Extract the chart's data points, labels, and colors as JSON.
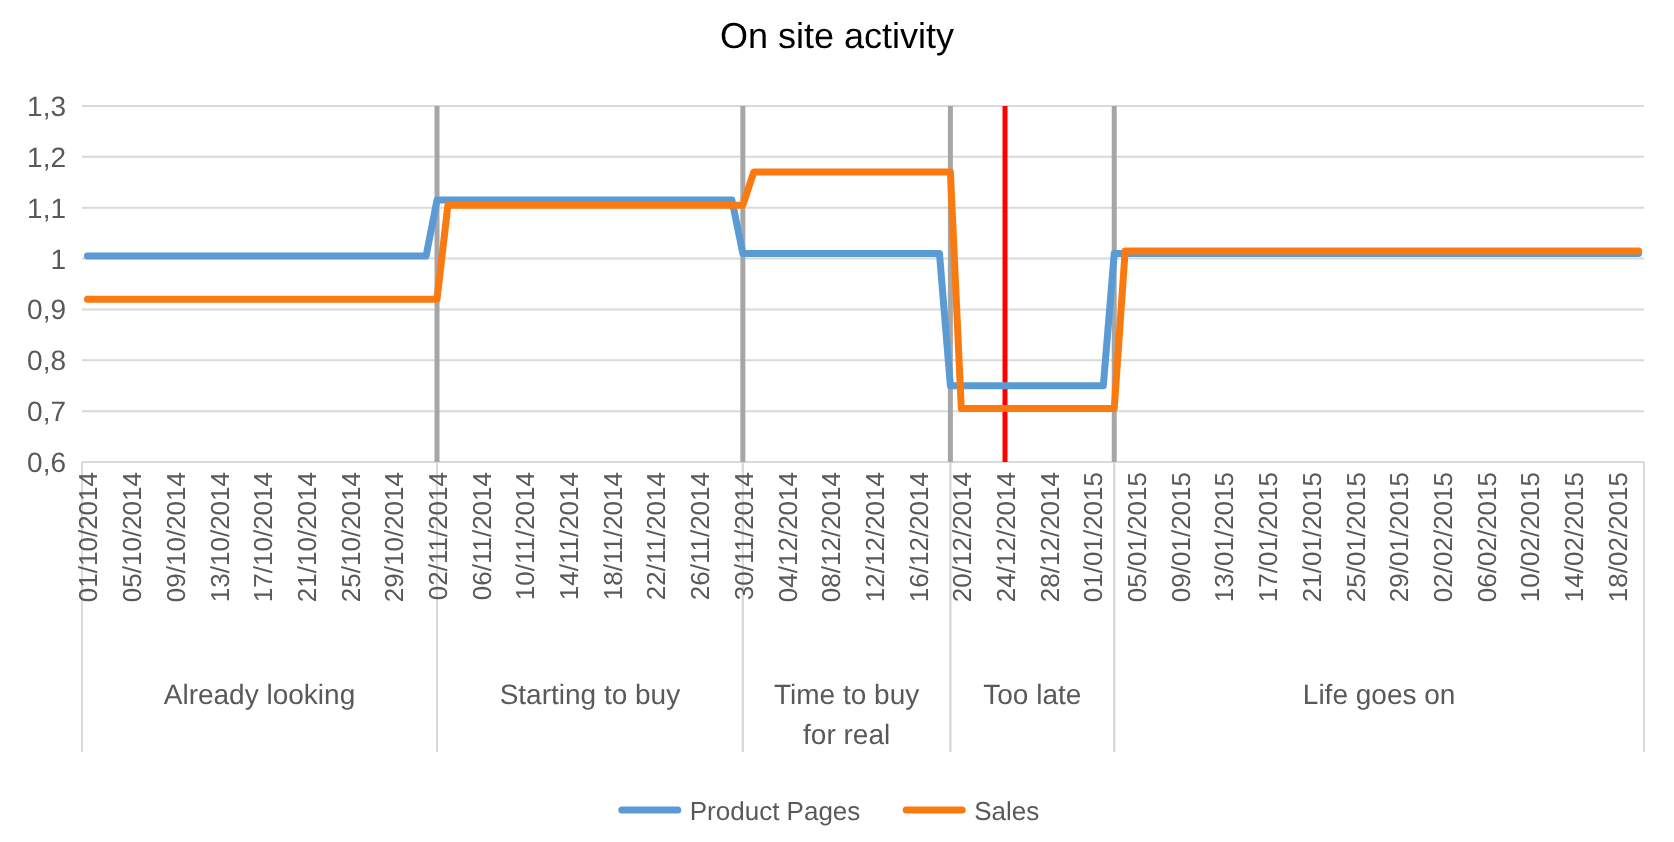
{
  "chart_data": {
    "type": "line",
    "title": "On site activity",
    "series": [
      {
        "name": "Product Pages",
        "color": "#5b9bd5",
        "x": [
          "2014-10-01",
          "2014-11-01",
          "2014-11-02",
          "2014-11-29",
          "2014-11-30",
          "2014-12-18",
          "2014-12-19",
          "2015-01-02",
          "2015-01-03",
          "2015-02-20"
        ],
        "values": [
          1.005,
          1.005,
          1.115,
          1.115,
          1.01,
          1.01,
          0.75,
          0.75,
          1.01,
          1.01
        ]
      },
      {
        "name": "Sales",
        "color": "#fb7a10",
        "x": [
          "2014-10-01",
          "2014-11-02",
          "2014-11-03",
          "2014-11-30",
          "2014-12-01",
          "2014-12-19",
          "2014-12-20",
          "2015-01-03",
          "2015-01-04",
          "2015-02-20"
        ],
        "values": [
          0.92,
          0.92,
          1.105,
          1.105,
          1.17,
          1.17,
          0.705,
          0.705,
          1.015,
          1.015
        ]
      }
    ],
    "xlim": [
      "2014-09-30T12:00",
      "2015-02-20T12:00"
    ],
    "xticks": [
      {
        "value": "2014-10-01",
        "label": "01/10/2014"
      },
      {
        "value": "2014-10-05",
        "label": "05/10/2014"
      },
      {
        "value": "2014-10-09",
        "label": "09/10/2014"
      },
      {
        "value": "2014-10-13",
        "label": "13/10/2014"
      },
      {
        "value": "2014-10-17",
        "label": "17/10/2014"
      },
      {
        "value": "2014-10-21",
        "label": "21/10/2014"
      },
      {
        "value": "2014-10-25",
        "label": "25/10/2014"
      },
      {
        "value": "2014-10-29",
        "label": "29/10/2014"
      },
      {
        "value": "2014-11-02",
        "label": "02/11/2014"
      },
      {
        "value": "2014-11-06",
        "label": "06/11/2014"
      },
      {
        "value": "2014-11-10",
        "label": "10/11/2014"
      },
      {
        "value": "2014-11-14",
        "label": "14/11/2014"
      },
      {
        "value": "2014-11-18",
        "label": "18/11/2014"
      },
      {
        "value": "2014-11-22",
        "label": "22/11/2014"
      },
      {
        "value": "2014-11-26",
        "label": "26/11/2014"
      },
      {
        "value": "2014-11-30",
        "label": "30/11/2014"
      },
      {
        "value": "2014-12-04",
        "label": "04/12/2014"
      },
      {
        "value": "2014-12-08",
        "label": "08/12/2014"
      },
      {
        "value": "2014-12-12",
        "label": "12/12/2014"
      },
      {
        "value": "2014-12-16",
        "label": "16/12/2014"
      },
      {
        "value": "2014-12-20",
        "label": "20/12/2014"
      },
      {
        "value": "2014-12-24",
        "label": "24/12/2014"
      },
      {
        "value": "2014-12-28",
        "label": "28/12/2014"
      },
      {
        "value": "2015-01-01",
        "label": "01/01/2015"
      },
      {
        "value": "2015-01-05",
        "label": "05/01/2015"
      },
      {
        "value": "2015-01-09",
        "label": "09/01/2015"
      },
      {
        "value": "2015-01-13",
        "label": "13/01/2015"
      },
      {
        "value": "2015-01-17",
        "label": "17/01/2015"
      },
      {
        "value": "2015-01-21",
        "label": "21/01/2015"
      },
      {
        "value": "2015-01-25",
        "label": "25/01/2015"
      },
      {
        "value": "2015-01-29",
        "label": "29/01/2015"
      },
      {
        "value": "2015-02-02",
        "label": "02/02/2015"
      },
      {
        "value": "2015-02-06",
        "label": "06/02/2015"
      },
      {
        "value": "2015-02-10",
        "label": "10/02/2015"
      },
      {
        "value": "2015-02-14",
        "label": "14/02/2015"
      },
      {
        "value": "2015-02-18",
        "label": "18/02/2015"
      }
    ],
    "ylim": [
      0.6,
      1.3
    ],
    "yticks": [
      {
        "value": 0.6,
        "label": "0,6"
      },
      {
        "value": 0.7,
        "label": "0,7"
      },
      {
        "value": 0.8,
        "label": "0,8"
      },
      {
        "value": 0.9,
        "label": "0,9"
      },
      1,
      {
        "value": 1.1,
        "label": "1,1"
      },
      {
        "value": 1.2,
        "label": "1,2"
      },
      {
        "value": 1.3,
        "label": "1,3"
      }
    ],
    "ref_lines": [
      {
        "axis": "x",
        "value": "2014-11-02",
        "color": "#a6a6a6"
      },
      {
        "axis": "x",
        "value": "2014-11-30",
        "color": "#a6a6a6"
      },
      {
        "axis": "x",
        "value": "2014-12-19",
        "color": "#a6a6a6"
      },
      {
        "axis": "x",
        "value": "2015-01-03",
        "color": "#a6a6a6"
      },
      {
        "axis": "x",
        "value": "2014-12-24",
        "color": "#ff0000"
      }
    ],
    "annotations": [
      "Already looking",
      "Starting to buy",
      "Time to buy for real",
      "Too late",
      "Life goes on"
    ],
    "grid": "y",
    "legend": "bottom",
    "line_style": "solid"
  }
}
